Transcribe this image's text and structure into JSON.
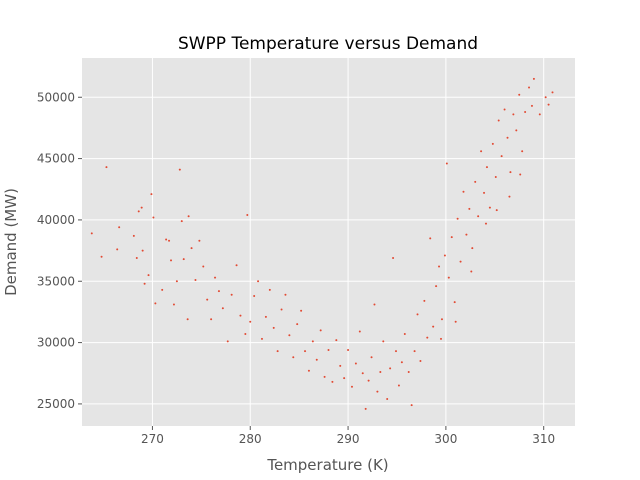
{
  "chart_data": {
    "type": "scatter",
    "title": "SWPP Temperature versus Demand",
    "xlabel": "Temperature (K)",
    "ylabel": "Demand (MW)",
    "xlim": [
      262.8,
      313.2
    ],
    "ylim": [
      23200,
      53200
    ],
    "xticks": [
      270,
      280,
      290,
      300,
      310
    ],
    "yticks": [
      25000,
      30000,
      35000,
      40000,
      45000,
      50000
    ],
    "grid": true,
    "style": "ggplot",
    "colors": {
      "background": "#E5E5E5",
      "grid": "#FFFFFF",
      "marker": "#E24A33"
    },
    "series": [
      {
        "values": [
          [
            263.8,
            38900
          ],
          [
            264.8,
            37000
          ],
          [
            265.3,
            44300
          ],
          [
            266.4,
            37600
          ],
          [
            266.6,
            39400
          ],
          [
            268.1,
            38700
          ],
          [
            268.4,
            36900
          ],
          [
            268.6,
            40700
          ],
          [
            268.9,
            41000
          ],
          [
            269.0,
            37500
          ],
          [
            269.2,
            34800
          ],
          [
            269.6,
            35500
          ],
          [
            269.9,
            42100
          ],
          [
            270.1,
            40200
          ],
          [
            270.3,
            33200
          ],
          [
            271.0,
            34300
          ],
          [
            271.4,
            38400
          ],
          [
            271.7,
            38300
          ],
          [
            271.9,
            36700
          ],
          [
            272.2,
            33100
          ],
          [
            272.5,
            35000
          ],
          [
            272.8,
            44100
          ],
          [
            273.0,
            39900
          ],
          [
            273.2,
            36800
          ],
          [
            273.6,
            31900
          ],
          [
            273.7,
            40300
          ],
          [
            274.0,
            37700
          ],
          [
            274.4,
            35100
          ],
          [
            274.8,
            38300
          ],
          [
            275.2,
            36200
          ],
          [
            275.6,
            33500
          ],
          [
            276.0,
            31900
          ],
          [
            276.4,
            35300
          ],
          [
            276.8,
            34200
          ],
          [
            277.2,
            32800
          ],
          [
            277.7,
            30100
          ],
          [
            278.1,
            33900
          ],
          [
            278.6,
            36300
          ],
          [
            279.0,
            32200
          ],
          [
            279.5,
            30700
          ],
          [
            279.7,
            40400
          ],
          [
            280.0,
            31700
          ],
          [
            280.4,
            33800
          ],
          [
            280.8,
            35000
          ],
          [
            281.2,
            30300
          ],
          [
            281.6,
            32100
          ],
          [
            282.0,
            34300
          ],
          [
            282.4,
            31200
          ],
          [
            282.8,
            29300
          ],
          [
            283.2,
            32700
          ],
          [
            283.6,
            33900
          ],
          [
            284.0,
            30600
          ],
          [
            284.4,
            28800
          ],
          [
            284.8,
            31500
          ],
          [
            285.2,
            32600
          ],
          [
            285.6,
            29300
          ],
          [
            286.0,
            27700
          ],
          [
            286.4,
            30100
          ],
          [
            286.8,
            28600
          ],
          [
            287.2,
            31000
          ],
          [
            287.6,
            27200
          ],
          [
            288.0,
            29400
          ],
          [
            288.4,
            26800
          ],
          [
            288.8,
            30200
          ],
          [
            289.2,
            28100
          ],
          [
            289.6,
            27100
          ],
          [
            290.0,
            29400
          ],
          [
            290.4,
            26400
          ],
          [
            290.8,
            28300
          ],
          [
            291.2,
            30900
          ],
          [
            291.5,
            27500
          ],
          [
            291.8,
            24600
          ],
          [
            292.1,
            26900
          ],
          [
            292.4,
            28800
          ],
          [
            292.7,
            33100
          ],
          [
            293.0,
            26000
          ],
          [
            293.3,
            27600
          ],
          [
            293.6,
            30100
          ],
          [
            294.0,
            25400
          ],
          [
            294.3,
            27900
          ],
          [
            294.6,
            36900
          ],
          [
            294.9,
            29300
          ],
          [
            295.2,
            26500
          ],
          [
            295.5,
            28400
          ],
          [
            295.8,
            30700
          ],
          [
            296.2,
            27600
          ],
          [
            296.5,
            24900
          ],
          [
            296.8,
            29300
          ],
          [
            297.1,
            32300
          ],
          [
            297.4,
            28500
          ],
          [
            297.8,
            33400
          ],
          [
            298.1,
            30400
          ],
          [
            298.4,
            38500
          ],
          [
            298.7,
            31300
          ],
          [
            299.0,
            34600
          ],
          [
            299.3,
            36200
          ],
          [
            299.6,
            31900
          ],
          [
            299.9,
            37100
          ],
          [
            300.1,
            44600
          ],
          [
            300.3,
            35300
          ],
          [
            300.6,
            38600
          ],
          [
            300.9,
            33300
          ],
          [
            301.2,
            40100
          ],
          [
            301.5,
            36600
          ],
          [
            301.8,
            42300
          ],
          [
            302.1,
            38800
          ],
          [
            302.4,
            40900
          ],
          [
            302.7,
            37700
          ],
          [
            303.0,
            43100
          ],
          [
            303.3,
            40300
          ],
          [
            303.6,
            45600
          ],
          [
            303.9,
            42200
          ],
          [
            304.2,
            44300
          ],
          [
            304.5,
            41000
          ],
          [
            304.8,
            46200
          ],
          [
            305.1,
            43500
          ],
          [
            305.4,
            48100
          ],
          [
            305.7,
            45200
          ],
          [
            306.0,
            49000
          ],
          [
            306.3,
            46700
          ],
          [
            306.6,
            43900
          ],
          [
            306.9,
            48600
          ],
          [
            307.2,
            47300
          ],
          [
            307.5,
            50200
          ],
          [
            307.8,
            45600
          ],
          [
            308.1,
            48800
          ],
          [
            308.5,
            50800
          ],
          [
            308.8,
            49300
          ],
          [
            309.0,
            51500
          ],
          [
            309.6,
            48600
          ],
          [
            310.2,
            50000
          ],
          [
            310.5,
            49400
          ],
          [
            310.9,
            50400
          ],
          [
            304.1,
            39700
          ],
          [
            305.2,
            40800
          ],
          [
            302.6,
            35800
          ],
          [
            301.0,
            31700
          ],
          [
            299.5,
            30300
          ],
          [
            306.5,
            41900
          ],
          [
            307.6,
            43700
          ]
        ]
      }
    ]
  }
}
